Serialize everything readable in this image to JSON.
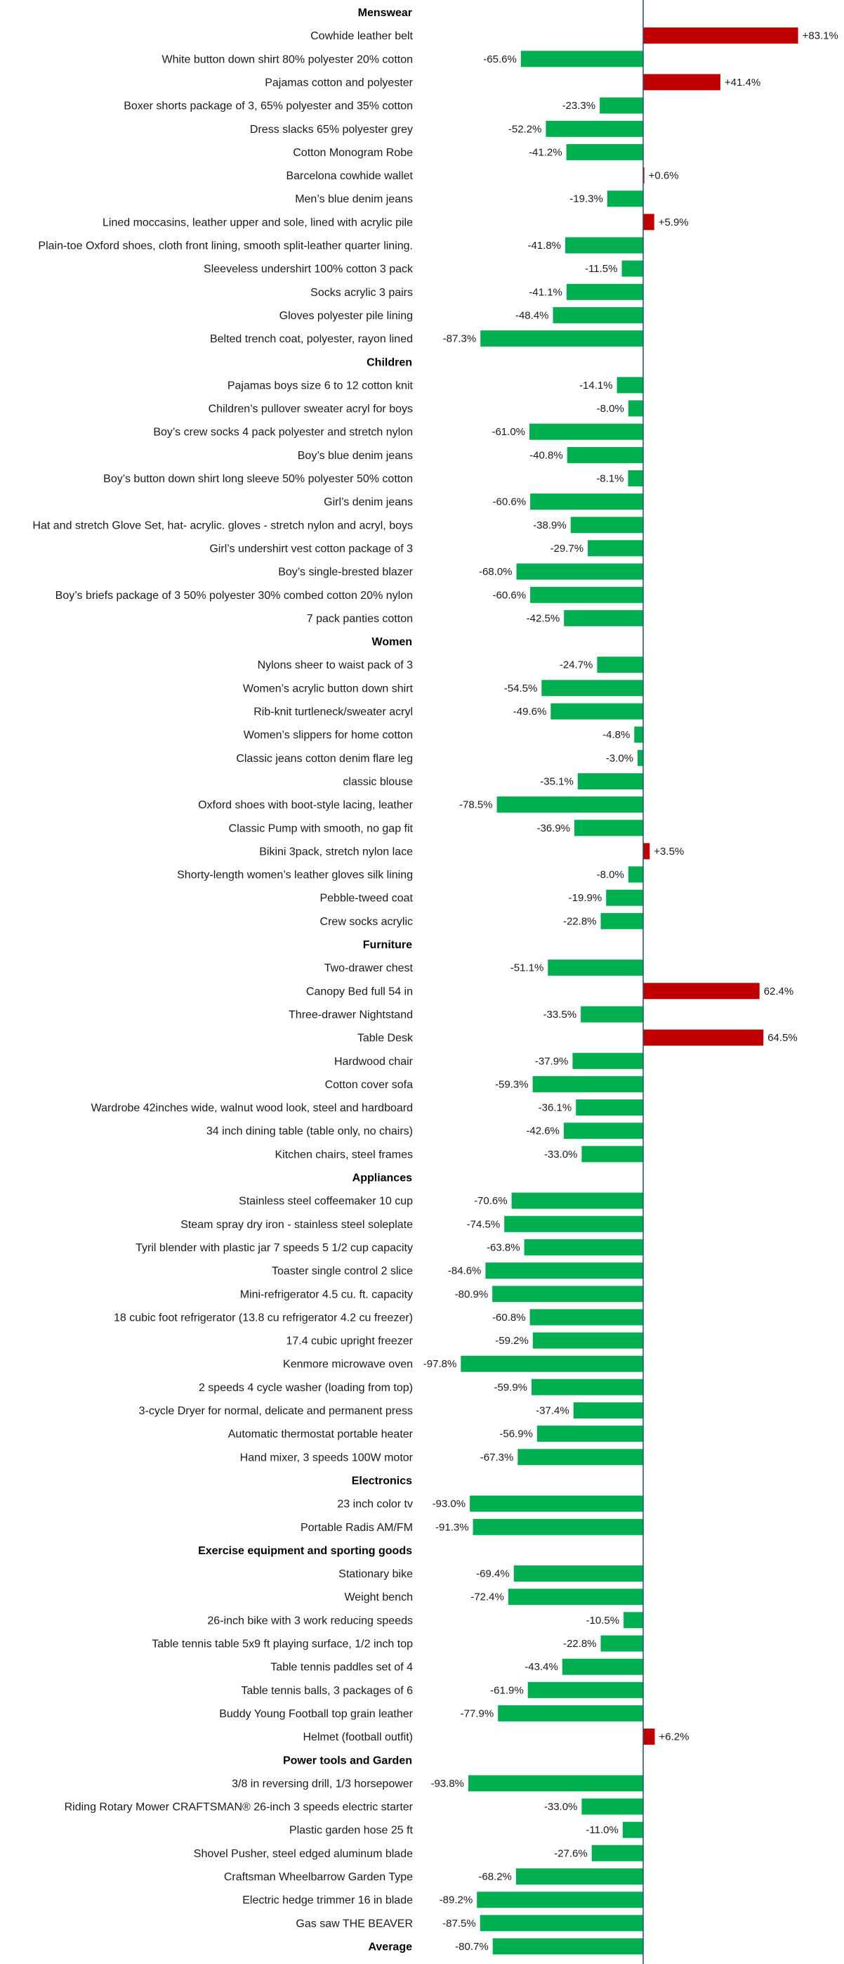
{
  "chart_data": {
    "type": "bar",
    "orientation": "horizontal",
    "title": "",
    "xlabel": "",
    "ylabel": "",
    "xlim": [
      -100,
      100
    ],
    "grid": false,
    "colors": {
      "positive": "#c00000",
      "negative": "#00b050",
      "zero_line": "#1f4e79"
    },
    "groups": [
      {
        "name": "Menswear",
        "items": [
          {
            "label": "Cowhide leather belt",
            "value": 83.1,
            "value_label": "+83.1%"
          },
          {
            "label": "White button down shirt 80% polyester 20% cotton",
            "value": -65.6,
            "value_label": "-65.6%"
          },
          {
            "label": "Pajamas cotton and polyester",
            "value": 41.4,
            "value_label": "+41.4%"
          },
          {
            "label": "Boxer shorts package of 3, 65% polyester and 35% cotton",
            "value": -23.3,
            "value_label": "-23.3%"
          },
          {
            "label": "Dress slacks 65% polyester grey",
            "value": -52.2,
            "value_label": "-52.2%"
          },
          {
            "label": "Cotton Monogram Robe",
            "value": -41.2,
            "value_label": "-41.2%"
          },
          {
            "label": "Barcelona cowhide wallet",
            "value": 0.6,
            "value_label": "+0.6%"
          },
          {
            "label": "Men’s blue denim jeans",
            "value": -19.3,
            "value_label": "-19.3%"
          },
          {
            "label": "Lined moccasins, leather upper and sole, lined with acrylic pile",
            "value": 5.9,
            "value_label": "+5.9%"
          },
          {
            "label": "Plain-toe Oxford shoes, cloth front lining, smooth split-leather quarter lining.",
            "value": -41.8,
            "value_label": "-41.8%"
          },
          {
            "label": "Sleeveless undershirt 100% cotton 3 pack",
            "value": -11.5,
            "value_label": "-11.5%"
          },
          {
            "label": "Socks acrylic 3 pairs",
            "value": -41.1,
            "value_label": "-41.1%"
          },
          {
            "label": "Gloves polyester pile lining",
            "value": -48.4,
            "value_label": "-48.4%"
          },
          {
            "label": "Belted trench coat, polyester, rayon lined",
            "value": -87.3,
            "value_label": "-87.3%"
          }
        ]
      },
      {
        "name": "Children",
        "items": [
          {
            "label": "Pajamas boys size 6 to 12 cotton knit",
            "value": -14.1,
            "value_label": "-14.1%"
          },
          {
            "label": "Children’s pullover sweater acryl for boys",
            "value": -8.0,
            "value_label": "-8.0%"
          },
          {
            "label": "Boy’s crew socks 4 pack polyester and stretch nylon",
            "value": -61.0,
            "value_label": "-61.0%"
          },
          {
            "label": "Boy’s blue denim jeans",
            "value": -40.8,
            "value_label": "-40.8%"
          },
          {
            "label": "Boy’s button down shirt long sleeve 50% polyester 50% cotton",
            "value": -8.1,
            "value_label": "-8.1%"
          },
          {
            "label": "Girl’s denim jeans",
            "value": -60.6,
            "value_label": "-60.6%"
          },
          {
            "label": "Hat and stretch Glove Set, hat- acrylic. gloves - stretch nylon and acryl, boys",
            "value": -38.9,
            "value_label": "-38.9%"
          },
          {
            "label": "Girl’s undershirt vest cotton package of 3",
            "value": -29.7,
            "value_label": "-29.7%"
          },
          {
            "label": "Boy’s single-brested blazer",
            "value": -68.0,
            "value_label": "-68.0%"
          },
          {
            "label": "Boy’s briefs package of 3 50% polyester 30% combed cotton 20% nylon",
            "value": -60.6,
            "value_label": "-60.6%"
          },
          {
            "label": "7 pack panties cotton",
            "value": -42.5,
            "value_label": "-42.5%"
          }
        ]
      },
      {
        "name": "Women",
        "items": [
          {
            "label": "Nylons sheer to waist pack of 3",
            "value": -24.7,
            "value_label": "-24.7%"
          },
          {
            "label": "Women’s acrylic button down shirt",
            "value": -54.5,
            "value_label": "-54.5%"
          },
          {
            "label": "Rib-knit turtleneck/sweater acryl",
            "value": -49.6,
            "value_label": "-49.6%"
          },
          {
            "label": "Women’s slippers for home cotton",
            "value": -4.8,
            "value_label": "-4.8%"
          },
          {
            "label": "Classic jeans cotton denim flare leg",
            "value": -3.0,
            "value_label": "-3.0%"
          },
          {
            "label": "classic blouse",
            "value": -35.1,
            "value_label": "-35.1%"
          },
          {
            "label": "Oxford shoes with boot-style lacing, leather",
            "value": -78.5,
            "value_label": "-78.5%"
          },
          {
            "label": "Classic Pump with smooth, no gap fit",
            "value": -36.9,
            "value_label": "-36.9%"
          },
          {
            "label": "Bikini 3pack, stretch nylon lace",
            "value": 3.5,
            "value_label": "+3.5%"
          },
          {
            "label": "Shorty-length women’s leather gloves silk lining",
            "value": -8.0,
            "value_label": "-8.0%"
          },
          {
            "label": "Pebble-tweed coat",
            "value": -19.9,
            "value_label": "-19.9%"
          },
          {
            "label": "Crew socks acrylic",
            "value": -22.8,
            "value_label": "-22.8%"
          }
        ]
      },
      {
        "name": "Furniture",
        "items": [
          {
            "label": "Two-drawer chest",
            "value": -51.1,
            "value_label": "-51.1%"
          },
          {
            "label": "Canopy Bed full 54 in",
            "value": 62.4,
            "value_label": "62.4%"
          },
          {
            "label": "Three-drawer Nightstand",
            "value": -33.5,
            "value_label": "-33.5%"
          },
          {
            "label": "Table Desk",
            "value": 64.5,
            "value_label": "64.5%"
          },
          {
            "label": "Hardwood chair",
            "value": -37.9,
            "value_label": "-37.9%"
          },
          {
            "label": "Cotton cover sofa",
            "value": -59.3,
            "value_label": "-59.3%"
          },
          {
            "label": "Wardrobe 42inches wide, walnut wood look, steel and hardboard",
            "value": -36.1,
            "value_label": "-36.1%"
          },
          {
            "label": "34 inch dining table (table only, no chairs)",
            "value": -42.6,
            "value_label": "-42.6%"
          },
          {
            "label": "Kitchen chairs, steel frames",
            "value": -33.0,
            "value_label": "-33.0%"
          }
        ]
      },
      {
        "name": "Appliances",
        "items": [
          {
            "label": "Stainless steel coffeemaker 10 cup",
            "value": -70.6,
            "value_label": "-70.6%"
          },
          {
            "label": "Steam spray dry iron - stainless steel soleplate",
            "value": -74.5,
            "value_label": "-74.5%"
          },
          {
            "label": "Tyril blender with plastic jar 7 speeds 5 1/2 cup capacity",
            "value": -63.8,
            "value_label": "-63.8%"
          },
          {
            "label": "Toaster single control 2 slice",
            "value": -84.6,
            "value_label": "-84.6%"
          },
          {
            "label": "Mini-refrigerator 4.5 cu. ft. capacity",
            "value": -80.9,
            "value_label": "-80.9%"
          },
          {
            "label": "18 cubic foot refrigerator (13.8 cu refrigerator 4.2 cu freezer)",
            "value": -60.8,
            "value_label": "-60.8%"
          },
          {
            "label": "17.4 cubic upright freezer",
            "value": -59.2,
            "value_label": "-59.2%"
          },
          {
            "label": "Kenmore microwave oven",
            "value": -97.8,
            "value_label": "-97.8%"
          },
          {
            "label": "2 speeds 4 cycle washer (loading from top)",
            "value": -59.9,
            "value_label": "-59.9%"
          },
          {
            "label": "3-cycle Dryer for normal, delicate and permanent press",
            "value": -37.4,
            "value_label": "-37.4%"
          },
          {
            "label": "Automatic thermostat portable heater",
            "value": -56.9,
            "value_label": "-56.9%"
          },
          {
            "label": "Hand mixer, 3 speeds 100W motor",
            "value": -67.3,
            "value_label": "-67.3%"
          }
        ]
      },
      {
        "name": "Electronics",
        "items": [
          {
            "label": "23 inch color tv",
            "value": -93.0,
            "value_label": "-93.0%"
          },
          {
            "label": "Portable Radis AM/FM",
            "value": -91.3,
            "value_label": "-91.3%"
          }
        ]
      },
      {
        "name": "Exercise equipment and sporting goods",
        "items": [
          {
            "label": "Stationary bike",
            "value": -69.4,
            "value_label": "-69.4%"
          },
          {
            "label": "Weight bench",
            "value": -72.4,
            "value_label": "-72.4%"
          },
          {
            "label": "26-inch bike with 3 work reducing speeds",
            "value": -10.5,
            "value_label": "-10.5%"
          },
          {
            "label": "Table tennis table 5x9 ft playing surface, 1/2 inch top",
            "value": -22.8,
            "value_label": "-22.8%"
          },
          {
            "label": "Table tennis paddles set of 4",
            "value": -43.4,
            "value_label": "-43.4%"
          },
          {
            "label": "Table tennis balls, 3 packages of 6",
            "value": -61.9,
            "value_label": "-61.9%"
          },
          {
            "label": "Buddy Young Football top grain leather",
            "value": -77.9,
            "value_label": "-77.9%"
          },
          {
            "label": "Helmet (football outfit)",
            "value": 6.2,
            "value_label": "+6.2%"
          }
        ]
      },
      {
        "name": "Power tools and Garden",
        "items": [
          {
            "label": "3/8 in reversing drill, 1/3 horsepower",
            "value": -93.8,
            "value_label": "-93.8%"
          },
          {
            "label": "Riding Rotary Mower CRAFTSMAN® 26-inch 3 speeds electric starter",
            "value": -33.0,
            "value_label": "-33.0%"
          },
          {
            "label": "Plastic garden hose 25 ft",
            "value": -11.0,
            "value_label": "-11.0%"
          },
          {
            "label": "Shovel Pusher, steel edged aluminum blade",
            "value": -27.6,
            "value_label": "-27.6%"
          },
          {
            "label": "Craftsman Wheelbarrow Garden Type",
            "value": -68.2,
            "value_label": "-68.2%"
          },
          {
            "label": "Electric hedge trimmer 16 in blade",
            "value": -89.2,
            "value_label": "-89.2%"
          },
          {
            "label": "Gas saw THE BEAVER",
            "value": -87.5,
            "value_label": "-87.5%"
          }
        ]
      }
    ],
    "average": {
      "label": "Average",
      "value": -80.7,
      "value_label": "-80.7%"
    }
  }
}
